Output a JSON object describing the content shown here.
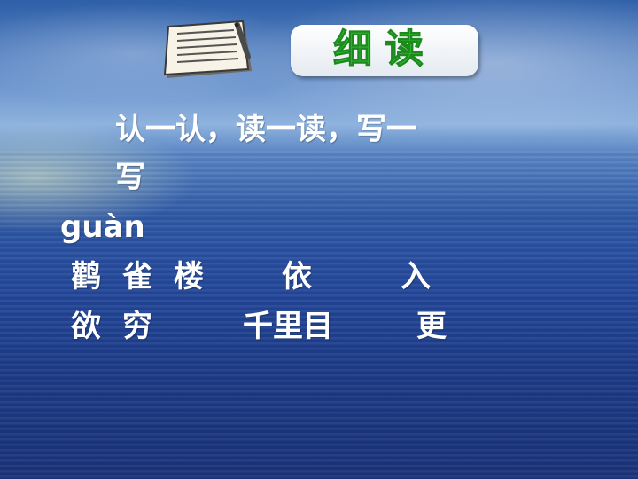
{
  "title": "细读",
  "instruction_line1": "认一认，读一读，写一",
  "instruction_line2": "写",
  "pinyin": "guàn",
  "words_row1": [
    "鹳",
    "雀",
    "楼",
    "依",
    "入"
  ],
  "words_row2": [
    "欲",
    "穷",
    "千里目",
    "更"
  ],
  "icon": "notebook-icon"
}
